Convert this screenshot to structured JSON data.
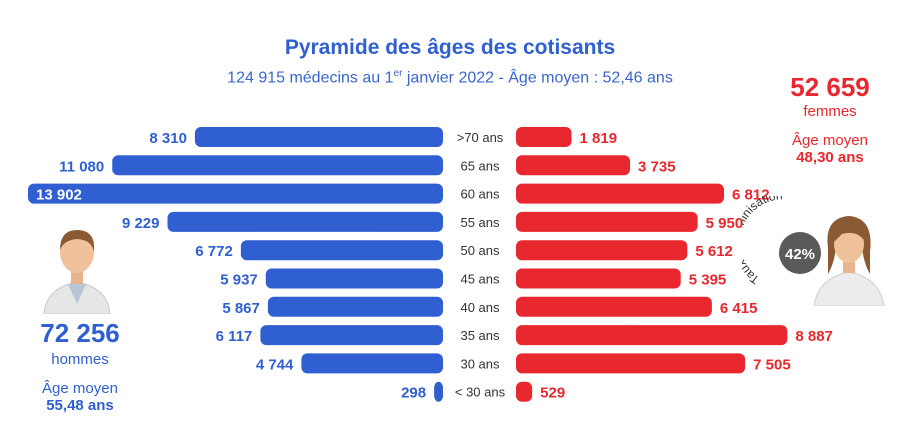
{
  "title": "Pyramide des âges des cotisants",
  "subtitle": {
    "part1": "124 915 médecins au 1",
    "sup": "er",
    "part2": " janvier 2022 - Âge moyen : 52,46 ans"
  },
  "men": {
    "total": "72 256",
    "label": "hommes",
    "avg_label": "Âge moyen",
    "avg_value": "55,48 ans"
  },
  "women": {
    "total": "52 659",
    "label": "femmes",
    "avg_label": "Âge moyen",
    "avg_value": "48,30 ans",
    "feminisation_rate": "42%",
    "feminisation_label": "Taux de féminisation"
  },
  "colors": {
    "men": "#2f5fd0",
    "women": "#e8282e",
    "text_dark": "#333333"
  },
  "chart_data": {
    "type": "bar",
    "orientation": "horizontal-pyramid",
    "categories": [
      ">70 ans",
      "65 ans",
      "60 ans",
      "55 ans",
      "50 ans",
      "45 ans",
      "40 ans",
      "35 ans",
      "30 ans",
      "< 30 ans"
    ],
    "series": [
      {
        "name": "hommes",
        "values": [
          8310,
          11080,
          13902,
          9229,
          6772,
          5937,
          5867,
          6117,
          4744,
          298
        ],
        "labels": [
          "8 310",
          "11 080",
          "13 902",
          "9 229",
          "6 772",
          "5 937",
          "5 867",
          "6 117",
          "4 744",
          "298"
        ]
      },
      {
        "name": "femmes",
        "values": [
          1819,
          3735,
          6812,
          5950,
          5612,
          5395,
          6415,
          8887,
          7505,
          529
        ],
        "labels": [
          "1 819",
          "3 735",
          "6 812",
          "5 950",
          "5 612",
          "5 395",
          "6 415",
          "8 887",
          "7 505",
          "529"
        ]
      }
    ],
    "title": "Pyramide des âges des cotisants",
    "xlabel": "",
    "ylabel": ""
  }
}
